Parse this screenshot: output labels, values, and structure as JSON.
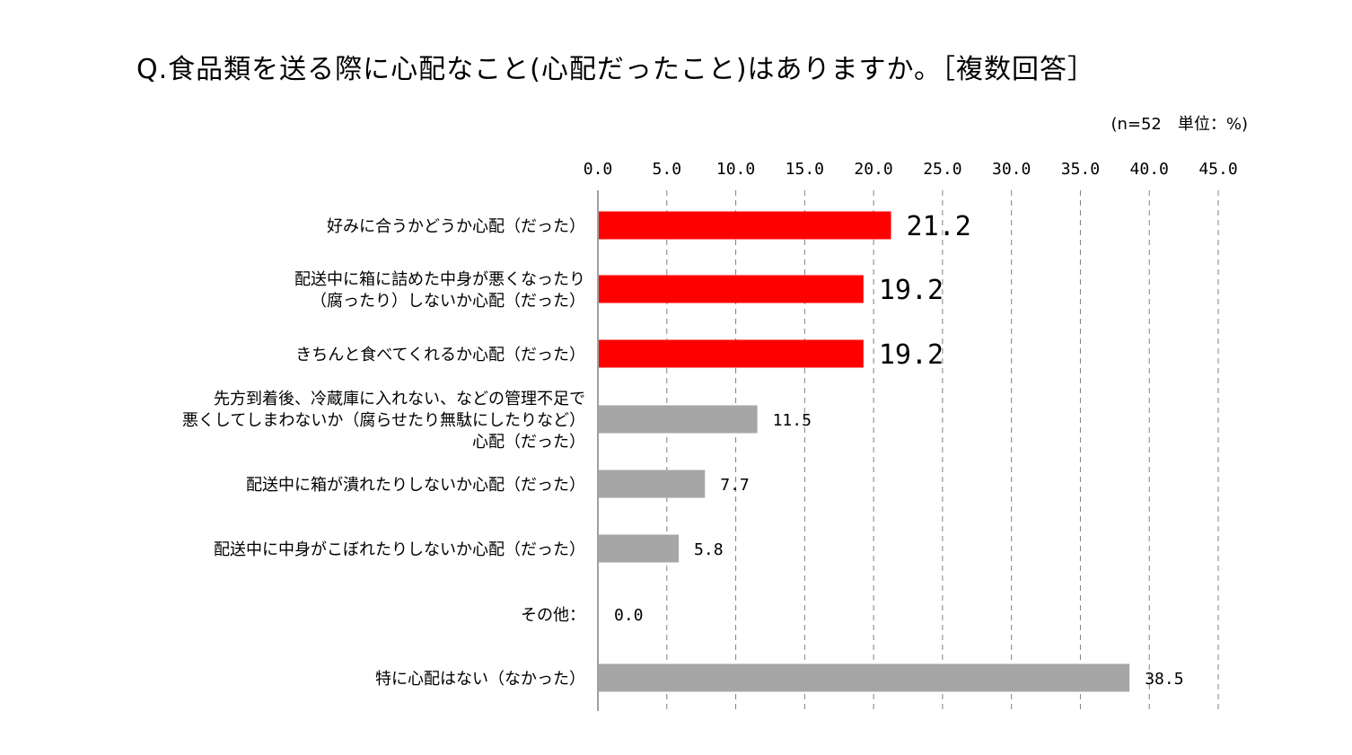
{
  "chart_data": {
    "type": "bar",
    "orientation": "horizontal",
    "title": "Q.食品類を送る際に心配なこと(心配だったこと)はありますか。［複数回答］",
    "note": "(n=52　単位：%)",
    "xlim": [
      0,
      45
    ],
    "ticks": [
      "0.0",
      "5.0",
      "10.0",
      "15.0",
      "20.0",
      "25.0",
      "30.0",
      "35.0",
      "40.0",
      "45.0"
    ],
    "tick_values": [
      0,
      5,
      10,
      15,
      20,
      25,
      30,
      35,
      40,
      45
    ],
    "grid": "vertical-dashed",
    "categories": [
      [
        "好みに合うかどうか心配（だった）"
      ],
      [
        "配送中に箱に詰めた中身が悪くなったり",
        "（腐ったり）しないか心配（だった）"
      ],
      [
        "きちんと食べてくれるか心配（だった）"
      ],
      [
        "先方到着後、冷蔵庫に入れない、などの管理不足で",
        "悪くしてしまわないか（腐らせたり無駄にしたりなど）",
        "心配（だった）"
      ],
      [
        "配送中に箱が潰れたりしないか心配（だった）"
      ],
      [
        "配送中に中身がこぼれたりしないか心配（だった）"
      ],
      [
        "その他："
      ],
      [
        "特に心配はない（なかった）"
      ]
    ],
    "values": [
      21.2,
      19.2,
      19.2,
      11.5,
      7.7,
      5.8,
      0.0,
      38.5
    ],
    "value_labels": [
      "21.2",
      "19.2",
      "19.2",
      "11.5",
      "7.7",
      "5.8",
      "0.0",
      "38.5"
    ],
    "highlighted": [
      true,
      true,
      true,
      false,
      false,
      false,
      false,
      false
    ],
    "colors": {
      "highlight": "#ff0000",
      "normal": "#a6a6a6",
      "grid": "#808080",
      "axis": "#808080"
    }
  }
}
